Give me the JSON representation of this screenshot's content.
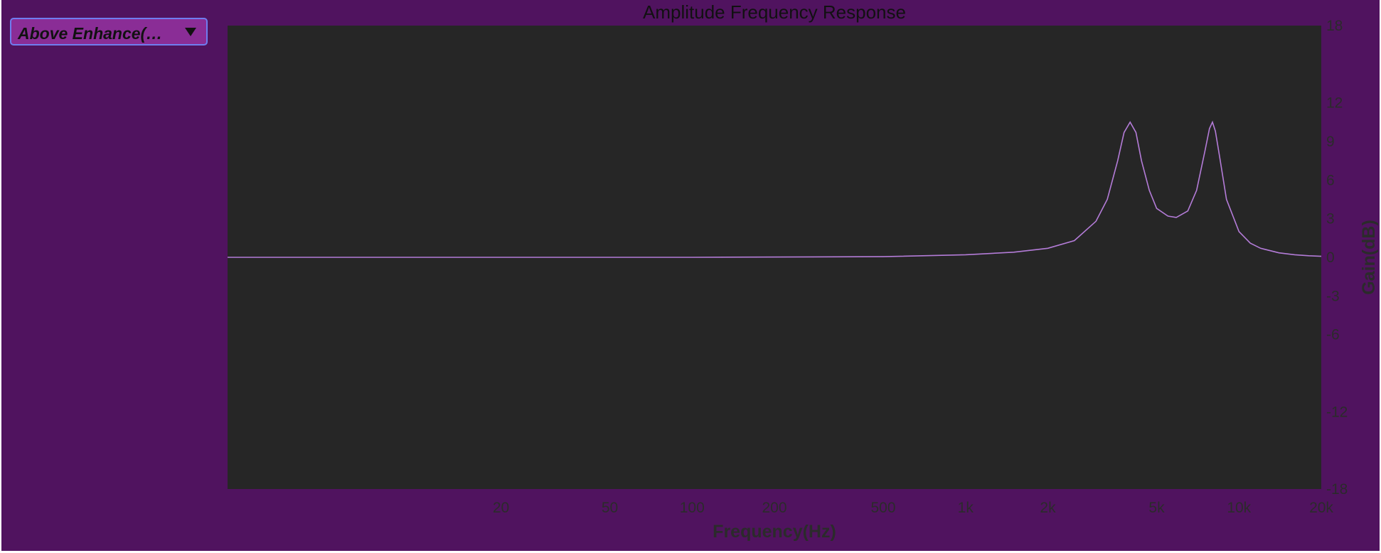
{
  "preset": {
    "selected": "Above Enhance(…",
    "arrow_icon": "triangle-down-icon"
  },
  "colors": {
    "background": "#50135f",
    "plot_area": "#262626",
    "curve": "#b47cd8",
    "dropdown": "#8a2d96",
    "dropdown_border": "#6f7df0"
  },
  "chart_data": {
    "type": "line",
    "title": "Amplitude Frequency Response",
    "xlabel": "Frequency(Hz)",
    "ylabel": "Gain(dB)",
    "x_scale": "log",
    "xlim": [
      2,
      20000
    ],
    "ylim": [
      -18,
      18
    ],
    "grid": false,
    "x_ticks": [
      {
        "value": 20,
        "label": "20"
      },
      {
        "value": 50,
        "label": "50"
      },
      {
        "value": 100,
        "label": "100"
      },
      {
        "value": 200,
        "label": "200"
      },
      {
        "value": 500,
        "label": "500"
      },
      {
        "value": 1000,
        "label": "1k"
      },
      {
        "value": 2000,
        "label": "2k"
      },
      {
        "value": 5000,
        "label": "5k"
      },
      {
        "value": 10000,
        "label": "10k"
      },
      {
        "value": 20000,
        "label": "20k"
      }
    ],
    "y_ticks": [
      {
        "value": 18,
        "label": "18"
      },
      {
        "value": 12,
        "label": "12"
      },
      {
        "value": 9,
        "label": "9"
      },
      {
        "value": 6,
        "label": "6"
      },
      {
        "value": 3,
        "label": "3"
      },
      {
        "value": 0,
        "label": "0"
      },
      {
        "value": -3,
        "label": "-3"
      },
      {
        "value": -6,
        "label": "-6"
      },
      {
        "value": -12,
        "label": "-12"
      },
      {
        "value": -18,
        "label": "-18"
      }
    ],
    "series": [
      {
        "x": [
          2,
          100,
          500,
          1000,
          1500,
          2000,
          2500,
          3000,
          3300,
          3600,
          3800,
          4000,
          4200,
          4400,
          4700,
          5000,
          5500,
          5900,
          6500,
          7000,
          7500,
          7800,
          8000,
          8200,
          8500,
          9000,
          10000,
          11000,
          12000,
          14000,
          16000,
          18000,
          20000
        ],
        "values": [
          0,
          0,
          0.05,
          0.2,
          0.4,
          0.7,
          1.3,
          2.8,
          4.5,
          7.5,
          9.7,
          10.5,
          9.7,
          7.5,
          5.2,
          3.8,
          3.2,
          3.1,
          3.6,
          5.2,
          8.2,
          10.0,
          10.5,
          9.8,
          7.8,
          4.5,
          2.0,
          1.1,
          0.7,
          0.35,
          0.2,
          0.12,
          0.08
        ]
      }
    ]
  }
}
